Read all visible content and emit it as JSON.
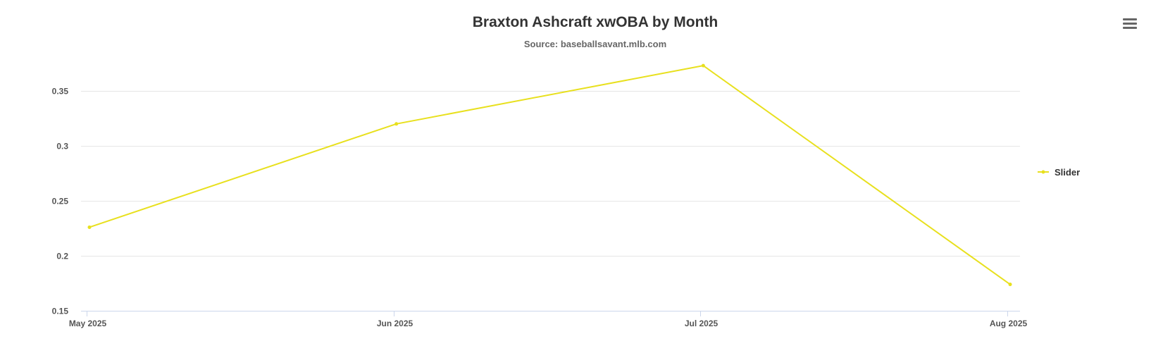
{
  "chart_data": {
    "type": "line",
    "title": "Braxton Ashcraft xwOBA by Month",
    "subtitle": "Source: baseballsavant.mlb.com",
    "x": [
      "May 2025",
      "Jun 2025",
      "Jul 2025",
      "Aug 2025"
    ],
    "xlabel": "",
    "ylabel": "",
    "ylim": [
      0.15,
      0.375
    ],
    "yticks": [
      0.15,
      0.2,
      0.25,
      0.3,
      0.35
    ],
    "ytick_labels": [
      "0.15",
      "0.2",
      "0.25",
      "0.3",
      "0.35"
    ],
    "grid": true,
    "legend": "right",
    "series": [
      {
        "name": "Slider",
        "color": "#e8e01e",
        "values": [
          0.226,
          0.32,
          0.373,
          0.174
        ]
      }
    ]
  },
  "menu": {
    "icon": "hamburger-menu-icon"
  }
}
